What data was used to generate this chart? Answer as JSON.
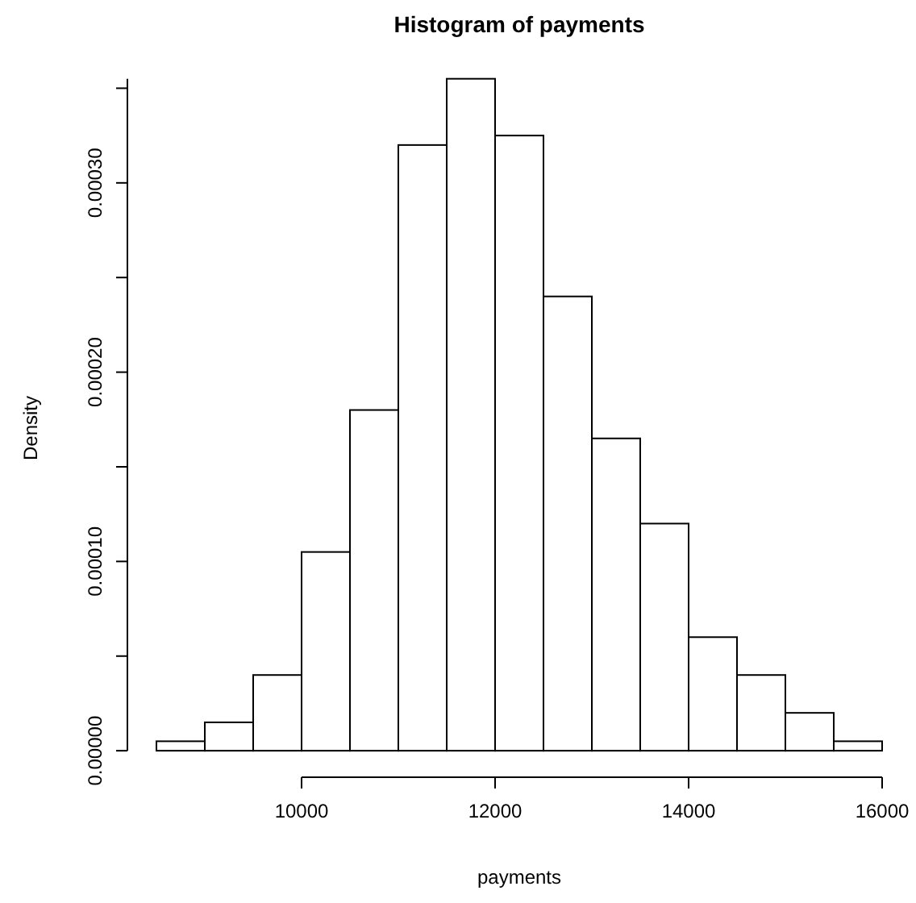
{
  "chart_data": {
    "type": "histogram",
    "title": "Histogram of payments",
    "xlabel": "payments",
    "ylabel": "Density",
    "bins": [
      8500,
      9000,
      9500,
      10000,
      10500,
      11000,
      11500,
      12000,
      12500,
      13000,
      13500,
      14000,
      14500,
      15000,
      15500,
      16000
    ],
    "values": [
      5e-06,
      1.5e-05,
      4e-05,
      0.000105,
      0.00018,
      0.00032,
      0.000355,
      0.000325,
      0.00024,
      0.000165,
      0.00012,
      6e-05,
      4e-05,
      2e-05,
      5e-06
    ],
    "color": "#ffffff",
    "xlim": [
      8200,
      16300
    ],
    "xticks": [
      10000,
      12000,
      14000,
      16000
    ],
    "ylim": [
      -1.4e-05,
      0.000355
    ],
    "yticks": [
      {
        "value": 0,
        "label": "0.00000"
      },
      {
        "value": 5e-05,
        "label": null
      },
      {
        "value": 0.0001,
        "label": "0.00010"
      },
      {
        "value": 0.00015,
        "label": null
      },
      {
        "value": 0.0002,
        "label": "0.00020"
      },
      {
        "value": 0.00025,
        "label": null
      },
      {
        "value": 0.0003,
        "label": "0.00030"
      },
      {
        "value": 0.00035,
        "label": null
      }
    ],
    "grid": false
  }
}
